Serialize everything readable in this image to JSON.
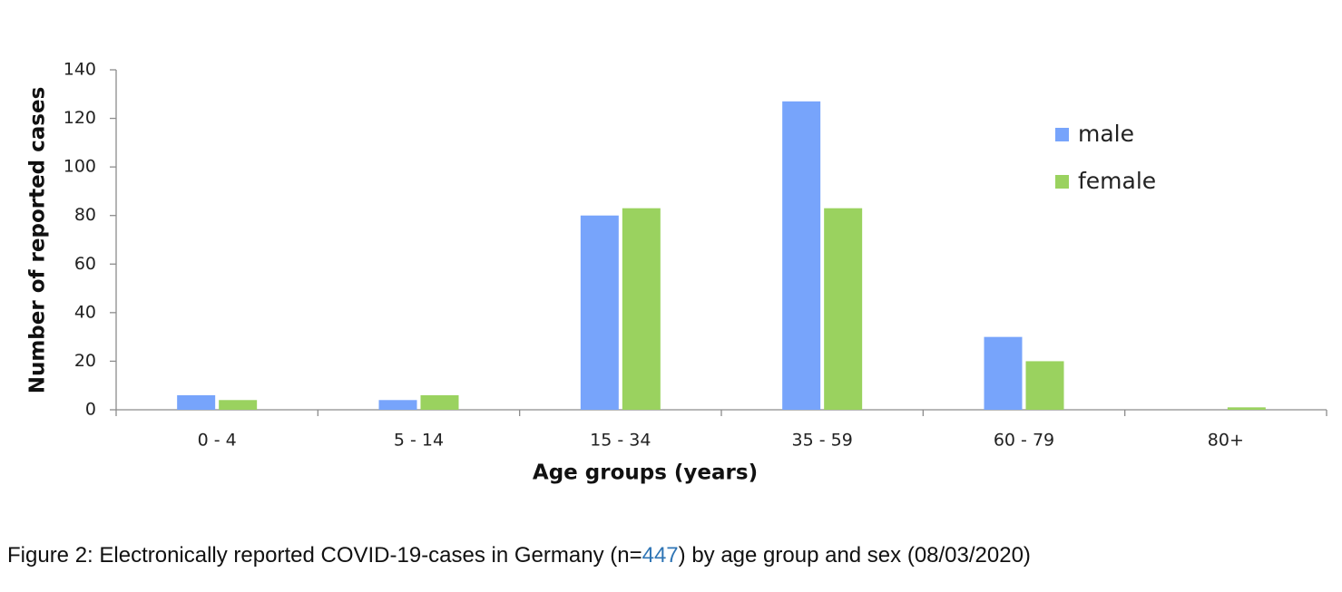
{
  "chart_data": {
    "type": "bar",
    "x_label": "Age groups (years)",
    "y_label": "Number of reported cases",
    "categories": [
      "0 - 4",
      "5 - 14",
      "15 - 34",
      "35 - 59",
      "60 - 79",
      "80+"
    ],
    "series": [
      {
        "name": "male",
        "color": "#77a4fb",
        "values": [
          6,
          4,
          80,
          127,
          30,
          0
        ]
      },
      {
        "name": "female",
        "color": "#9ad25f",
        "values": [
          4,
          6,
          83,
          83,
          20,
          1
        ]
      }
    ],
    "ylim": [
      0,
      140
    ],
    "yticks": [
      0,
      20,
      40,
      60,
      80,
      100,
      120,
      140
    ],
    "legend": "upper right",
    "caption": {
      "prefix": "Figure 2: Electronically reported COVID-19-cases in Germany (n=",
      "n": 447,
      "suffix": ") by age group and sex (08/03/2020)"
    }
  }
}
